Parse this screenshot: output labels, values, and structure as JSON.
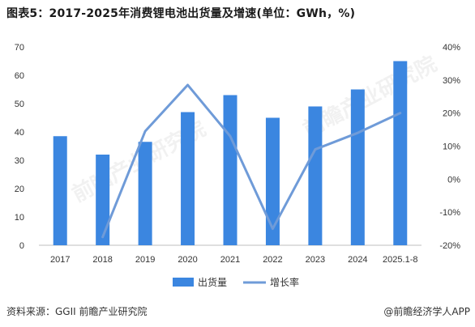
{
  "title": "图表5：2017-2025年消费锂电池出货量及增速(单位：GWh，%)",
  "source_label": "资料来源：GGII 前瞻产业研究院",
  "credit": "@前瞻经济学人APP",
  "watermark": "前瞻产业研究院",
  "colors": {
    "bar": "#3b86e0",
    "line": "#6f9bd8",
    "axis": "#bfbfbf"
  },
  "chart_data": {
    "type": "bar",
    "categories": [
      "2017",
      "2018",
      "2019",
      "2020",
      "2021",
      "2022",
      "2023",
      "2024",
      "2025.1-8"
    ],
    "series": [
      {
        "name": "出货量",
        "type": "bar",
        "axis": "left",
        "values": [
          38.5,
          32,
          36.5,
          47,
          53,
          45,
          49,
          55,
          65
        ]
      },
      {
        "name": "增长率",
        "type": "line",
        "axis": "right",
        "values": [
          null,
          -17.5,
          14.5,
          28.5,
          13,
          -15,
          9,
          14,
          20
        ]
      }
    ],
    "ylim_left": [
      0,
      70
    ],
    "yticks_left": [
      "0",
      "10",
      "20",
      "30",
      "40",
      "50",
      "60",
      "70"
    ],
    "ylim_right": [
      -20,
      40
    ],
    "yticks_right": [
      "-20%",
      "-10%",
      "0%",
      "10%",
      "20%",
      "30%",
      "40%"
    ],
    "legend": "bottom",
    "grid": false
  }
}
